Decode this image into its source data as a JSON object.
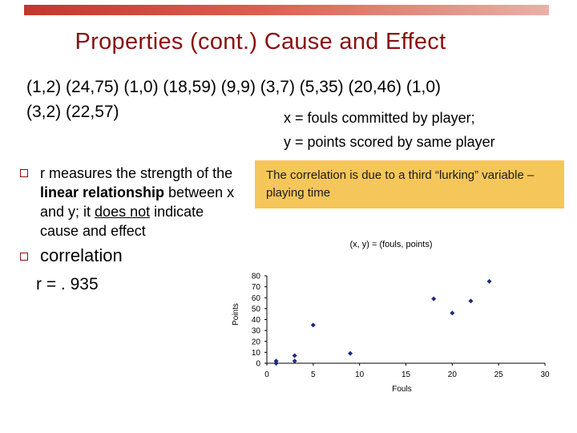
{
  "slide": {
    "title": "Properties (cont.)  Cause and Effect",
    "pairs_line1": "(1,2) (24,75) (1,0) (18,59) (9,9) (3,7) (5,35) (20,46) (1,0)",
    "pairs_line2": "(3,2) (22,57)",
    "x_def": "x = fouls committed by player;",
    "y_def": "y = points scored by same player",
    "bullet1": {
      "part1": "r measures the strength of the ",
      "bold": "linear relationship",
      "part2": " between x and y; it ",
      "underline": "does not",
      "part3": " indicate cause and effect"
    },
    "bullet2": "correlation",
    "r_value": "r = . 935",
    "callout": "The correlation is due to a third “lurking” variable – playing time",
    "colors": {
      "title": "#8b0f0f",
      "callout_bg": "#f5c65a",
      "marker": "#1f2a7a"
    }
  },
  "chart_data": {
    "type": "scatter",
    "title": "(x, y) = (fouls, points)",
    "xlabel": "Fouls",
    "ylabel": "Points",
    "xlim": [
      0,
      30
    ],
    "ylim": [
      0,
      80
    ],
    "xticks": [
      "0",
      "5",
      "10",
      "15",
      "20",
      "25",
      "30"
    ],
    "yticks": [
      "0",
      "10",
      "20",
      "30",
      "40",
      "50",
      "60",
      "70",
      "80"
    ],
    "grid": false,
    "points": [
      {
        "x": 1,
        "y": 2
      },
      {
        "x": 24,
        "y": 75
      },
      {
        "x": 1,
        "y": 0
      },
      {
        "x": 18,
        "y": 59
      },
      {
        "x": 9,
        "y": 9
      },
      {
        "x": 3,
        "y": 7
      },
      {
        "x": 5,
        "y": 35
      },
      {
        "x": 20,
        "y": 46
      },
      {
        "x": 1,
        "y": 0
      },
      {
        "x": 3,
        "y": 2
      },
      {
        "x": 22,
        "y": 57
      }
    ]
  }
}
